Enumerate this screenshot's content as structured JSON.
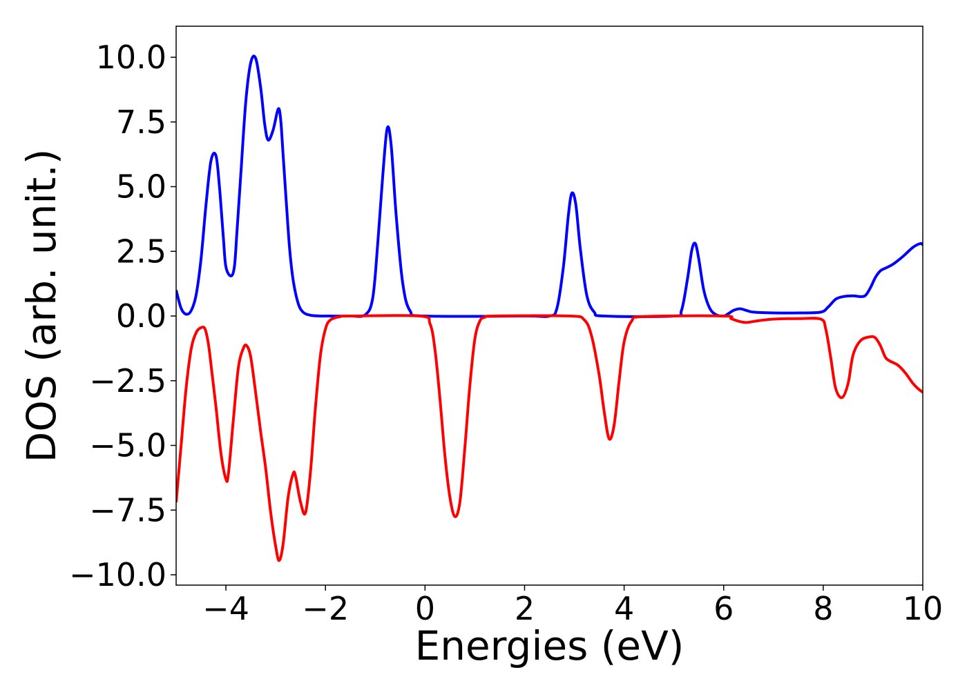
{
  "chart_data": {
    "type": "line",
    "title": "",
    "xlabel": "Energies (eV)",
    "ylabel": "DOS (arb. unit.)",
    "xlim": [
      -5,
      10
    ],
    "ylim": [
      -10.4,
      11.2
    ],
    "grid": false,
    "legend": "none",
    "x_ticks": [
      -4,
      -2,
      0,
      2,
      4,
      6,
      8,
      10
    ],
    "x_tick_labels": [
      "−4",
      "−2",
      "0",
      "2",
      "4",
      "6",
      "8",
      "10"
    ],
    "y_ticks": [
      10.0,
      7.5,
      5.0,
      2.5,
      0.0,
      -2.5,
      -5.0,
      -7.5,
      -10.0
    ],
    "y_tick_labels": [
      "10.0",
      "7.5",
      "5.0",
      "2.5",
      "0.0",
      "−2.5",
      "−5.0",
      "−7.5",
      "−10.0"
    ],
    "series": [
      {
        "color": "#0000ff",
        "x": [
          -5.0,
          -4.9,
          -4.8,
          -4.7,
          -4.6,
          -4.5,
          -4.4,
          -4.3,
          -4.2,
          -4.13,
          -4.05,
          -4.0,
          -3.9,
          -3.83,
          -3.78,
          -3.7,
          -3.6,
          -3.5,
          -3.4,
          -3.3,
          -3.22,
          -3.15,
          -3.05,
          -2.95,
          -2.9,
          -2.85,
          -2.78,
          -2.72,
          -2.65,
          -2.55,
          -2.45,
          -2.3,
          -2.1,
          -2.0,
          -1.5,
          -1.2,
          -1.05,
          -0.95,
          -0.85,
          -0.76,
          -0.68,
          -0.58,
          -0.45,
          -0.3,
          0.0,
          2.0,
          2.5,
          2.65,
          2.78,
          2.88,
          2.95,
          3.03,
          3.12,
          3.25,
          3.4,
          3.6,
          5.0,
          5.15,
          5.27,
          5.36,
          5.43,
          5.5,
          5.6,
          5.72,
          5.85,
          6.0,
          6.1,
          6.2,
          6.33,
          6.45,
          6.6,
          7.0,
          7.5,
          7.95,
          8.1,
          8.25,
          8.4,
          8.6,
          8.75,
          8.85,
          8.95,
          9.05,
          9.15,
          9.25,
          9.4,
          9.6,
          9.8,
          9.95,
          10.0
        ],
        "y": [
          1.0,
          0.3,
          0.07,
          0.2,
          0.8,
          2.2,
          4.3,
          6.0,
          6.2,
          5.0,
          3.0,
          1.9,
          1.55,
          1.9,
          3.2,
          5.5,
          8.3,
          9.8,
          9.95,
          8.8,
          7.4,
          6.8,
          7.2,
          8.0,
          7.6,
          6.2,
          4.2,
          2.6,
          1.4,
          0.5,
          0.15,
          0.03,
          0.0,
          0.0,
          0.0,
          0.05,
          0.7,
          2.8,
          5.4,
          7.25,
          6.6,
          3.9,
          1.3,
          0.2,
          0.0,
          0.0,
          0.0,
          0.3,
          1.9,
          3.9,
          4.75,
          4.3,
          2.6,
          0.8,
          0.15,
          0.0,
          0.0,
          0.2,
          1.4,
          2.55,
          2.8,
          2.2,
          1.0,
          0.3,
          0.05,
          0.0,
          0.1,
          0.22,
          0.28,
          0.22,
          0.15,
          0.12,
          0.12,
          0.15,
          0.35,
          0.65,
          0.75,
          0.78,
          0.75,
          0.8,
          1.1,
          1.5,
          1.75,
          1.85,
          2.0,
          2.3,
          2.65,
          2.8,
          2.75
        ]
      },
      {
        "color": "#ff0000",
        "x": [
          -5.0,
          -4.9,
          -4.8,
          -4.7,
          -4.6,
          -4.5,
          -4.42,
          -4.35,
          -4.28,
          -4.2,
          -4.1,
          -4.0,
          -3.95,
          -3.85,
          -3.75,
          -3.65,
          -3.58,
          -3.5,
          -3.4,
          -3.3,
          -3.2,
          -3.1,
          -3.0,
          -2.93,
          -2.85,
          -2.75,
          -2.65,
          -2.6,
          -2.5,
          -2.4,
          -2.3,
          -2.2,
          -2.1,
          -2.0,
          -1.9,
          -1.7,
          -1.5,
          -0.1,
          0.1,
          0.2,
          0.3,
          0.4,
          0.5,
          0.6,
          0.7,
          0.8,
          0.9,
          1.0,
          1.1,
          1.2,
          1.4,
          2.9,
          3.2,
          3.35,
          3.5,
          3.6,
          3.7,
          3.8,
          3.9,
          4.0,
          4.15,
          4.4,
          6.0,
          6.15,
          6.3,
          6.45,
          6.7,
          7.0,
          7.5,
          7.95,
          8.05,
          8.15,
          8.25,
          8.38,
          8.5,
          8.6,
          8.75,
          8.95,
          9.05,
          9.15,
          9.25,
          9.35,
          9.5,
          9.65,
          9.8,
          9.9,
          10.0
        ],
        "y": [
          -7.2,
          -5.0,
          -2.8,
          -1.3,
          -0.65,
          -0.45,
          -0.5,
          -1.1,
          -2.2,
          -3.5,
          -5.3,
          -6.3,
          -6.1,
          -4.0,
          -2.0,
          -1.25,
          -1.15,
          -1.6,
          -3.0,
          -4.5,
          -5.9,
          -7.6,
          -8.9,
          -9.45,
          -8.8,
          -7.0,
          -6.1,
          -6.2,
          -7.2,
          -7.6,
          -6.0,
          -3.5,
          -1.5,
          -0.5,
          -0.15,
          -0.02,
          0.0,
          0.0,
          -0.3,
          -1.3,
          -3.2,
          -5.4,
          -7.0,
          -7.75,
          -7.2,
          -5.1,
          -2.7,
          -0.9,
          -0.2,
          -0.05,
          0.0,
          0.0,
          -0.15,
          -0.8,
          -2.3,
          -3.7,
          -4.75,
          -4.2,
          -2.5,
          -1.0,
          -0.2,
          -0.02,
          0.0,
          -0.1,
          -0.2,
          -0.25,
          -0.18,
          -0.12,
          -0.1,
          -0.12,
          -0.5,
          -1.6,
          -2.8,
          -3.15,
          -2.6,
          -1.5,
          -0.95,
          -0.8,
          -0.85,
          -1.15,
          -1.6,
          -1.75,
          -1.9,
          -2.2,
          -2.6,
          -2.8,
          -2.95
        ]
      }
    ]
  }
}
